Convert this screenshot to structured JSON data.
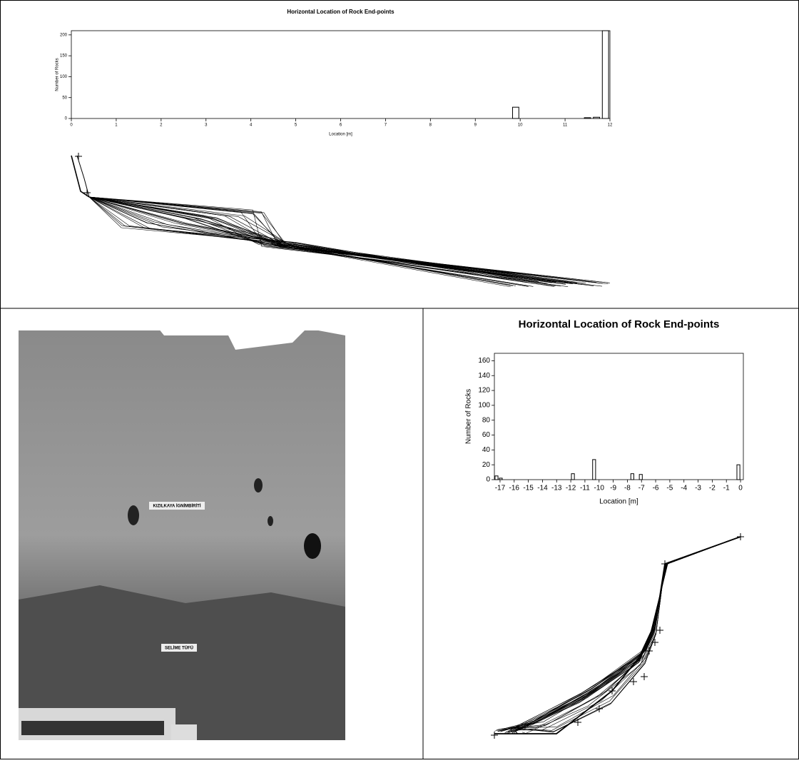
{
  "chart_data": [
    {
      "type": "histogram",
      "title": "Horizontal Location of Rock End-points",
      "xlabel": "Location [m]",
      "ylabel": "Number of Rocks",
      "bins": [
        0,
        0.2,
        0.4,
        0.6,
        0.8,
        1,
        1.2,
        1.4,
        1.6,
        1.8,
        2,
        2.2,
        2.4,
        2.6,
        2.8,
        3,
        3.2,
        3.4,
        3.6,
        3.8,
        4,
        4.2,
        4.4,
        4.6,
        4.8,
        5,
        5.2,
        5.4,
        5.6,
        5.8,
        6,
        6.2,
        6.4,
        6.6,
        6.8,
        7,
        7.2,
        7.4,
        7.6,
        7.8,
        8,
        8.2,
        8.4,
        8.6,
        8.8,
        9,
        9.2,
        9.4,
        9.6,
        9.8,
        10,
        10.2,
        10.4,
        10.6,
        10.8,
        11,
        11.2,
        11.4,
        11.6,
        11.8,
        12
      ],
      "counts": [
        0,
        0,
        0,
        0,
        0,
        0,
        0,
        0,
        0,
        0,
        0,
        0,
        0,
        0,
        0,
        0,
        0,
        0,
        0,
        0,
        0,
        0,
        0,
        0,
        0,
        0,
        0,
        0,
        0,
        0,
        0,
        0,
        0,
        0,
        0,
        0,
        0,
        0,
        0,
        0,
        0,
        0,
        0,
        0,
        0,
        0,
        0,
        0,
        0,
        27,
        0,
        0,
        0,
        0,
        0,
        0,
        0,
        2,
        3,
        210
      ],
      "color": "#000000",
      "xlim": [
        0,
        12
      ],
      "xticks": [
        0,
        1,
        2,
        3,
        4,
        5,
        6,
        7,
        8,
        9,
        10,
        11,
        12
      ],
      "ylim": [
        0,
        210
      ],
      "yticks": [
        0,
        50,
        100,
        150,
        200
      ]
    },
    {
      "type": "histogram",
      "title": "Horizontal Location of Rock End-points",
      "xlabel": "Location [m]",
      "ylabel": "Number of Rocks",
      "bins": [
        -17.4,
        -17.1,
        -16.8,
        -16.5,
        -16.2,
        -15.9,
        -15.6,
        -15.3,
        -15,
        -14.7,
        -14.4,
        -14.1,
        -13.8,
        -13.5,
        -13.2,
        -12.9,
        -12.6,
        -12.3,
        -12,
        -11.7,
        -11.4,
        -11.1,
        -10.8,
        -10.5,
        -10.2,
        -9.9,
        -9.6,
        -9.3,
        -9,
        -8.7,
        -8.4,
        -8.1,
        -7.8,
        -7.5,
        -7.2,
        -6.9,
        -6.6,
        -6.3,
        -6,
        -5.7,
        -5.4,
        -5.1,
        -4.8,
        -4.5,
        -4.2,
        -3.9,
        -3.6,
        -3.3,
        -3,
        -2.7,
        -2.4,
        -2.1,
        -1.8,
        -1.5,
        -1.2,
        -0.9,
        -0.6,
        -0.3,
        0
      ],
      "counts": [
        5,
        2,
        0,
        0,
        0,
        0,
        0,
        0,
        0,
        0,
        0,
        0,
        0,
        0,
        0,
        0,
        0,
        0,
        8,
        0,
        0,
        0,
        0,
        27,
        0,
        0,
        0,
        0,
        0,
        0,
        0,
        0,
        8,
        0,
        7,
        0,
        0,
        0,
        0,
        0,
        0,
        0,
        0,
        0,
        0,
        0,
        0,
        0,
        0,
        0,
        0,
        0,
        0,
        0,
        0,
        0,
        0,
        20
      ],
      "color": "#000000",
      "xlim": [
        -17.4,
        0.2
      ],
      "xticks": [
        -17,
        -16,
        -15,
        -14,
        -13,
        -12,
        -11,
        -10,
        -9,
        -8,
        -7,
        -6,
        -5,
        -4,
        -3,
        -2,
        -1,
        0
      ],
      "ylim": [
        0,
        170
      ],
      "yticks": [
        0,
        20,
        40,
        60,
        80,
        100,
        120,
        140,
        160
      ]
    }
  ],
  "photo": {
    "labels": [
      "KIZILKAYA İGNİMBİRİTİ",
      "SELİME TÜFÜ"
    ]
  }
}
